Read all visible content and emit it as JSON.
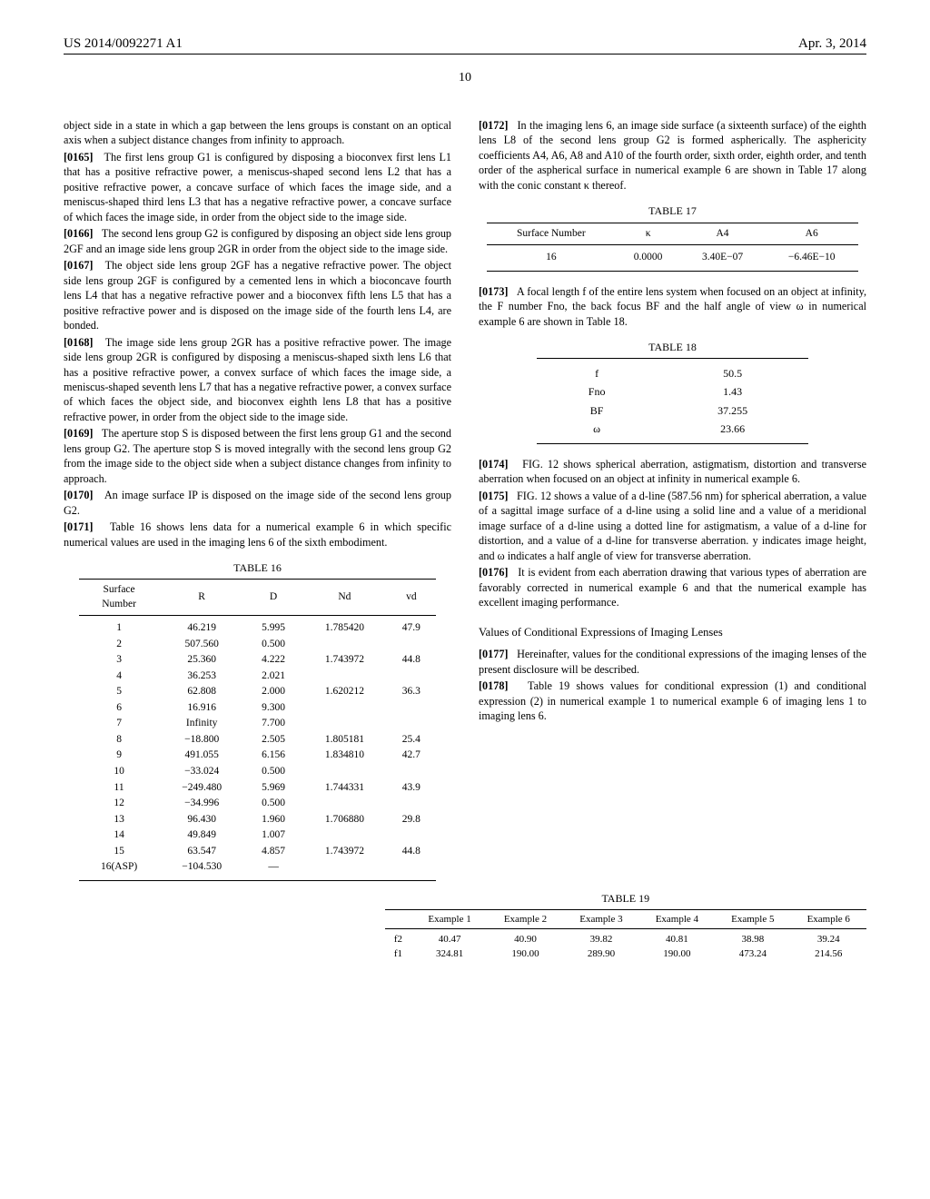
{
  "header": {
    "pub_num": "US 2014/0092271 A1",
    "date": "Apr. 3, 2014",
    "page_num": "10"
  },
  "left": {
    "intro": "object side in a state in which a gap between the lens groups is constant on an optical axis when a subject distance changes from infinity to approach.",
    "p0165": {
      "n": "[0165]",
      "t": "The first lens group G1 is configured by disposing a bioconvex first lens L1 that has a positive refractive power, a meniscus-shaped second lens L2 that has a positive refractive power, a concave surface of which faces the image side, and a meniscus-shaped third lens L3 that has a negative refractive power, a concave surface of which faces the image side, in order from the object side to the image side."
    },
    "p0166": {
      "n": "[0166]",
      "t": "The second lens group G2 is configured by disposing an object side lens group 2GF and an image side lens group 2GR in order from the object side to the image side."
    },
    "p0167": {
      "n": "[0167]",
      "t": "The object side lens group 2GF has a negative refractive power. The object side lens group 2GF is configured by a cemented lens in which a bioconcave fourth lens L4 that has a negative refractive power and a bioconvex fifth lens L5 that has a positive refractive power and is disposed on the image side of the fourth lens L4, are bonded."
    },
    "p0168": {
      "n": "[0168]",
      "t": "The image side lens group 2GR has a positive refractive power. The image side lens group 2GR is configured by disposing a meniscus-shaped sixth lens L6 that has a positive refractive power, a convex surface of which faces the image side, a meniscus-shaped seventh lens L7 that has a negative refractive power, a convex surface of which faces the object side, and bioconvex eighth lens L8 that has a positive refractive power, in order from the object side to the image side."
    },
    "p0169": {
      "n": "[0169]",
      "t": "The aperture stop S is disposed between the first lens group G1 and the second lens group G2. The aperture stop S is moved integrally with the second lens group G2 from the image side to the object side when a subject distance changes from infinity to approach."
    },
    "p0170": {
      "n": "[0170]",
      "t": "An image surface IP is disposed on the image side of the second lens group G2."
    },
    "p0171": {
      "n": "[0171]",
      "t": "Table 16 shows lens data for a numerical example 6 in which specific numerical values are used in the imaging lens 6 of the sixth embodiment."
    }
  },
  "table16": {
    "title": "TABLE 16",
    "cols": [
      "Surface\nNumber",
      "R",
      "D",
      "Nd",
      "vd"
    ],
    "rows": [
      [
        "1",
        "46.219",
        "5.995",
        "1.785420",
        "47.9"
      ],
      [
        "2",
        "507.560",
        "0.500",
        "",
        ""
      ],
      [
        "3",
        "25.360",
        "4.222",
        "1.743972",
        "44.8"
      ],
      [
        "4",
        "36.253",
        "2.021",
        "",
        ""
      ],
      [
        "5",
        "62.808",
        "2.000",
        "1.620212",
        "36.3"
      ],
      [
        "6",
        "16.916",
        "9.300",
        "",
        ""
      ],
      [
        "7",
        "Infinity",
        "7.700",
        "",
        ""
      ],
      [
        "8",
        "−18.800",
        "2.505",
        "1.805181",
        "25.4"
      ],
      [
        "9",
        "491.055",
        "6.156",
        "1.834810",
        "42.7"
      ],
      [
        "10",
        "−33.024",
        "0.500",
        "",
        ""
      ],
      [
        "11",
        "−249.480",
        "5.969",
        "1.744331",
        "43.9"
      ],
      [
        "12",
        "−34.996",
        "0.500",
        "",
        ""
      ],
      [
        "13",
        "96.430",
        "1.960",
        "1.706880",
        "29.8"
      ],
      [
        "14",
        "49.849",
        "1.007",
        "",
        ""
      ],
      [
        "15",
        "63.547",
        "4.857",
        "1.743972",
        "44.8"
      ],
      [
        "16(ASP)",
        "−104.530",
        "—",
        "",
        ""
      ]
    ]
  },
  "right": {
    "p0172": {
      "n": "[0172]",
      "t": "In the imaging lens 6, an image side surface (a sixteenth surface) of the eighth lens L8 of the second lens group G2 is formed aspherically. The asphericity coefficients A4, A6, A8 and A10 of the fourth order, sixth order, eighth order, and tenth order of the aspherical surface in numerical example 6 are shown in Table 17 along with the conic constant κ thereof."
    },
    "p0173": {
      "n": "[0173]",
      "t": "A focal length f of the entire lens system when focused on an object at infinity, the F number Fno, the back focus BF and the half angle of view ω in numerical example 6 are shown in Table 18."
    },
    "p0174": {
      "n": "[0174]",
      "t": "FIG. 12 shows spherical aberration, astigmatism, distortion and transverse aberration when focused on an object at infinity in numerical example 6."
    },
    "p0175": {
      "n": "[0175]",
      "t": "FIG. 12 shows a value of a d-line (587.56 nm) for spherical aberration, a value of a sagittal image surface of a d-line using a solid line and a value of a meridional image surface of a d-line using a dotted line for astigmatism, a value of a d-line for distortion, and a value of a d-line for transverse aberration. y indicates image height, and ω indicates a half angle of view for transverse aberration."
    },
    "p0176": {
      "n": "[0176]",
      "t": "It is evident from each aberration drawing that various types of aberration are favorably corrected in numerical example 6 and that the numerical example has excellent imaging performance."
    },
    "sec_head": "Values of Conditional Expressions of Imaging Lenses",
    "p0177": {
      "n": "[0177]",
      "t": "Hereinafter, values for the conditional expressions of the imaging lenses of the present disclosure will be described."
    },
    "p0178": {
      "n": "[0178]",
      "t": "Table 19 shows values for conditional expression (1) and conditional expression (2) in numerical example 1 to numerical example 6 of imaging lens 1 to imaging lens 6."
    }
  },
  "table17": {
    "title": "TABLE 17",
    "cols": [
      "Surface Number",
      "κ",
      "A4",
      "A6"
    ],
    "rows": [
      [
        "16",
        "0.0000",
        "3.40E−07",
        "−6.46E−10"
      ]
    ]
  },
  "table18": {
    "title": "TABLE 18",
    "rows": [
      [
        "f",
        "50.5"
      ],
      [
        "Fno",
        "1.43"
      ],
      [
        "BF",
        "37.255"
      ],
      [
        "ω",
        "23.66"
      ]
    ]
  },
  "table19": {
    "title": "TABLE 19",
    "cols": [
      "",
      "Example 1",
      "Example 2",
      "Example 3",
      "Example 4",
      "Example 5",
      "Example 6"
    ],
    "rows": [
      [
        "f2",
        "40.47",
        "40.90",
        "39.82",
        "40.81",
        "38.98",
        "39.24"
      ],
      [
        "f1",
        "324.81",
        "190.00",
        "289.90",
        "190.00",
        "473.24",
        "214.56"
      ]
    ]
  }
}
